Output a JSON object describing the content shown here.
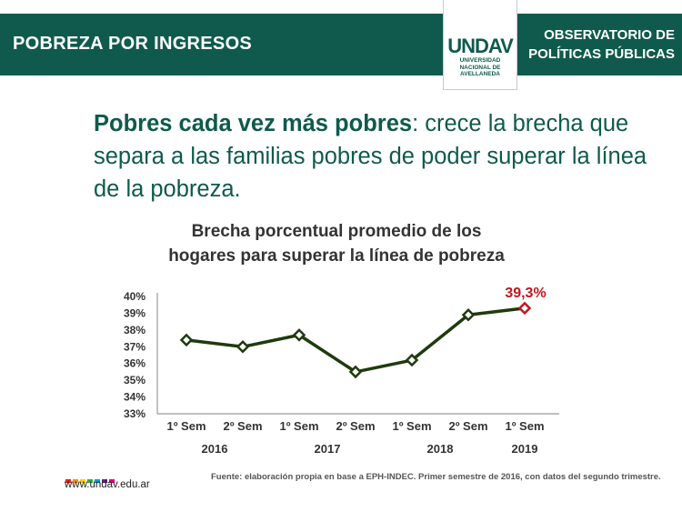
{
  "header": {
    "section_title": "POBREZA POR INGRESOS",
    "observatory_line1": "OBSERVATORIO DE",
    "observatory_line2": "POLÍTICAS PÚBLICAS",
    "logo_word": "UNDAV",
    "logo_line1": "UNIVERSIDAD",
    "logo_line2": "NACIONAL DE",
    "logo_line3": "AVELLANEDA"
  },
  "headline": {
    "bold": "Pobres cada vez más pobres",
    "rest": ": crece la brecha que separa a las familias pobres de poder superar la línea de la pobreza."
  },
  "chart_data": {
    "type": "line",
    "title_line1": "Brecha porcentual promedio de los",
    "title_line2": "hogares para superar la línea de pobreza",
    "categories": [
      "1º Sem",
      "2º Sem",
      "1º Sem",
      "2º Sem",
      "1º Sem",
      "2º Sem",
      "1º Sem"
    ],
    "years": [
      {
        "label": "2016",
        "span": [
          0,
          1
        ]
      },
      {
        "label": "2017",
        "span": [
          2,
          3
        ]
      },
      {
        "label": "2018",
        "span": [
          4,
          5
        ]
      },
      {
        "label": "2019",
        "span": [
          6,
          6
        ]
      }
    ],
    "values": [
      37.4,
      37.0,
      37.7,
      35.5,
      36.2,
      38.9,
      39.3
    ],
    "y_ticks": [
      "40%",
      "39%",
      "38%",
      "37%",
      "36%",
      "35%",
      "34%",
      "33%"
    ],
    "ylim": [
      33,
      40
    ],
    "grid": false,
    "highlight_label": "39,3%",
    "colors": {
      "line": "#1f3a0f",
      "highlight": "#c0181e"
    }
  },
  "footer": {
    "site": "www.undav.edu.ar",
    "source": "Fuente: elaboración propia en base a EPH-INDEC. Primer semestre de 2016, con datos del segundo trimestre.",
    "dot_colors": [
      "#e2231a",
      "#f39200",
      "#ffcc00",
      "#3aaa35",
      "#009fe3",
      "#662483",
      "#e6007e"
    ]
  }
}
